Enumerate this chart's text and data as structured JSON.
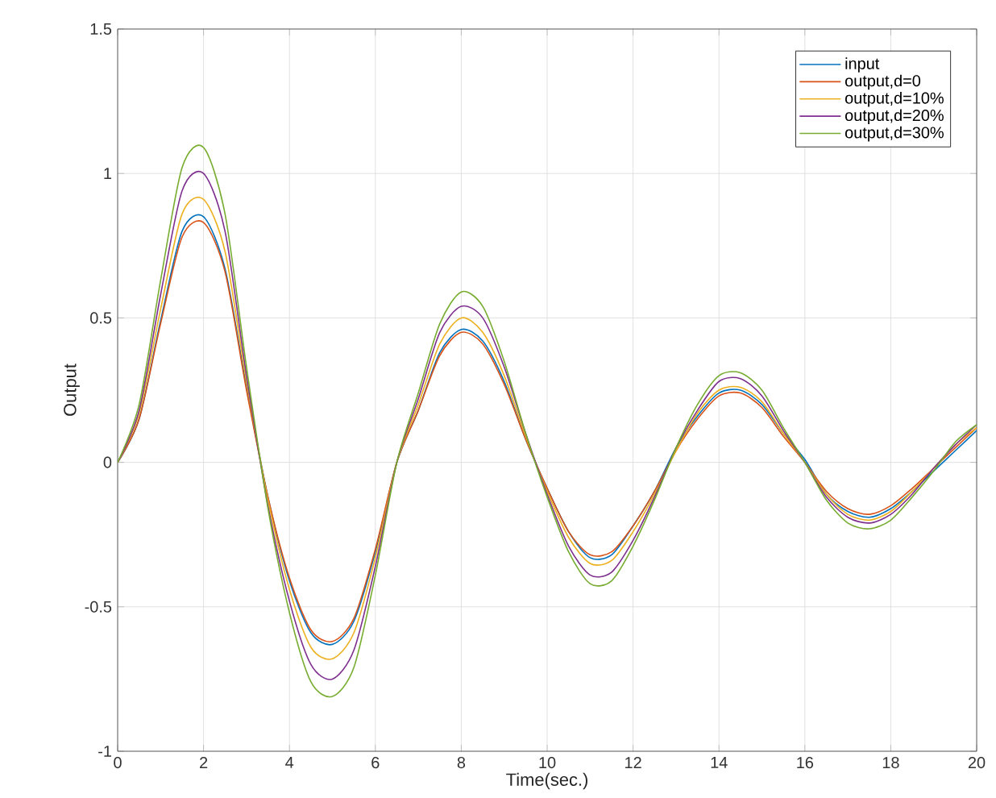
{
  "chart_data": {
    "type": "line",
    "xlabel": "Time(sec.)",
    "ylabel": "Output",
    "x": [
      0,
      0.5,
      1,
      1.5,
      2,
      2.5,
      3,
      3.5,
      4,
      4.5,
      5,
      5.5,
      6,
      6.5,
      7,
      7.5,
      8,
      8.5,
      9,
      9.5,
      10,
      10.5,
      11,
      11.5,
      12,
      12.5,
      13,
      13.5,
      14,
      14.5,
      15,
      15.5,
      16,
      16.5,
      17,
      17.5,
      18,
      18.5,
      19,
      19.5,
      20
    ],
    "series": [
      {
        "name": "input",
        "color": "#0072bd",
        "values": [
          0,
          0.15,
          0.49,
          0.8,
          0.85,
          0.67,
          0.26,
          -0.12,
          -0.41,
          -0.59,
          -0.63,
          -0.55,
          -0.31,
          0.0,
          0.18,
          0.38,
          0.46,
          0.42,
          0.28,
          0.08,
          -0.09,
          -0.24,
          -0.33,
          -0.32,
          -0.22,
          -0.1,
          0.05,
          0.16,
          0.24,
          0.25,
          0.2,
          0.1,
          0.01,
          -0.11,
          -0.17,
          -0.19,
          -0.16,
          -0.1,
          -0.03,
          0.04,
          0.11
        ]
      },
      {
        "name": "output,d=0",
        "color": "#d95319",
        "values": [
          0,
          0.15,
          0.48,
          0.78,
          0.83,
          0.66,
          0.25,
          -0.12,
          -0.4,
          -0.58,
          -0.62,
          -0.54,
          -0.3,
          0.0,
          0.18,
          0.37,
          0.45,
          0.41,
          0.27,
          0.08,
          -0.09,
          -0.24,
          -0.32,
          -0.31,
          -0.22,
          -0.1,
          0.04,
          0.15,
          0.23,
          0.24,
          0.19,
          0.09,
          0.0,
          -0.1,
          -0.16,
          -0.18,
          -0.15,
          -0.09,
          -0.02,
          0.05,
          0.12
        ]
      },
      {
        "name": "output,d=10%",
        "color": "#edb120",
        "values": [
          0,
          0.17,
          0.53,
          0.86,
          0.91,
          0.73,
          0.28,
          -0.13,
          -0.44,
          -0.64,
          -0.68,
          -0.59,
          -0.33,
          0.0,
          0.2,
          0.41,
          0.5,
          0.45,
          0.3,
          0.09,
          -0.1,
          -0.26,
          -0.35,
          -0.34,
          -0.24,
          -0.11,
          0.04,
          0.17,
          0.25,
          0.26,
          0.21,
          0.1,
          0.0,
          -0.11,
          -0.18,
          -0.2,
          -0.17,
          -0.1,
          -0.02,
          0.06,
          0.12
        ]
      },
      {
        "name": "output,d=20%",
        "color": "#7e2f8e",
        "values": [
          0,
          0.18,
          0.58,
          0.94,
          1.0,
          0.8,
          0.3,
          -0.15,
          -0.48,
          -0.7,
          -0.75,
          -0.65,
          -0.36,
          0.0,
          0.22,
          0.45,
          0.54,
          0.5,
          0.33,
          0.1,
          -0.11,
          -0.29,
          -0.39,
          -0.38,
          -0.27,
          -0.12,
          0.05,
          0.18,
          0.28,
          0.29,
          0.23,
          0.11,
          0.0,
          -0.12,
          -0.19,
          -0.21,
          -0.18,
          -0.11,
          -0.02,
          0.06,
          0.13
        ]
      },
      {
        "name": "output,d=30%",
        "color": "#77ac30",
        "values": [
          0,
          0.2,
          0.63,
          1.02,
          1.09,
          0.86,
          0.33,
          -0.16,
          -0.52,
          -0.76,
          -0.81,
          -0.71,
          -0.39,
          0.0,
          0.24,
          0.48,
          0.59,
          0.54,
          0.35,
          0.1,
          -0.12,
          -0.31,
          -0.42,
          -0.41,
          -0.29,
          -0.13,
          0.05,
          0.2,
          0.3,
          0.31,
          0.25,
          0.12,
          0.0,
          -0.13,
          -0.21,
          -0.23,
          -0.2,
          -0.12,
          -0.03,
          0.07,
          0.13
        ]
      }
    ],
    "xlim": [
      0,
      20
    ],
    "ylim": [
      -1,
      1.5
    ],
    "xticks": [
      0,
      2,
      4,
      6,
      8,
      10,
      12,
      14,
      16,
      18,
      20
    ],
    "yticks": [
      -1,
      -0.5,
      0,
      0.5,
      1,
      1.5
    ],
    "grid": true,
    "legend": "top right",
    "marker": "none",
    "line_style": "solid"
  }
}
